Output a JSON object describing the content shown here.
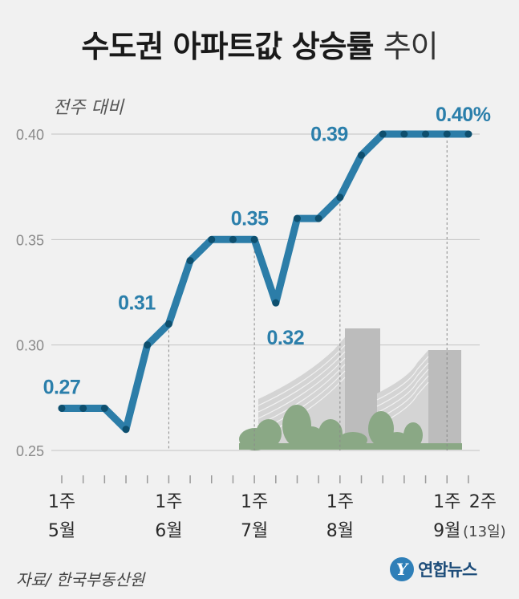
{
  "title": {
    "main": "수도권 아파트값 상승률",
    "sub": "추이"
  },
  "unit_label": "전주 대비",
  "source": "자료/ 한국부동산원",
  "logo": {
    "badge": "Y",
    "name": "연합뉴스"
  },
  "colors": {
    "line": "#2c7da8",
    "marker": "#0e4f6e",
    "label": "#2b7fab",
    "grid": "#c4c4c4",
    "axis": "#9a9a9a",
    "building": "#bcbcbc",
    "trees": "#8aa885"
  },
  "chart_data": {
    "type": "line",
    "ylim": [
      0.25,
      0.4
    ],
    "yticks": [
      "0.25",
      "0.30",
      "0.35",
      "0.40"
    ],
    "grid": true,
    "points": [
      {
        "x": "5월 1주",
        "y": 0.27
      },
      {
        "x": "5월 2주",
        "y": 0.27
      },
      {
        "x": "5월 3주",
        "y": 0.27
      },
      {
        "x": "5월 4주",
        "y": 0.26
      },
      {
        "x": "5월 5주",
        "y": 0.3
      },
      {
        "x": "6월 1주",
        "y": 0.31
      },
      {
        "x": "6월 2주",
        "y": 0.34
      },
      {
        "x": "6월 3주",
        "y": 0.35
      },
      {
        "x": "6월 4주",
        "y": 0.35
      },
      {
        "x": "7월 1주",
        "y": 0.35
      },
      {
        "x": "7월 2주",
        "y": 0.32
      },
      {
        "x": "7월 3주",
        "y": 0.36
      },
      {
        "x": "7월 4주",
        "y": 0.36
      },
      {
        "x": "8월 1주",
        "y": 0.37
      },
      {
        "x": "8월 2주",
        "y": 0.39
      },
      {
        "x": "8월 3주",
        "y": 0.4
      },
      {
        "x": "8월 4주",
        "y": 0.4
      },
      {
        "x": "8월 5주",
        "y": 0.4
      },
      {
        "x": "9월 1주",
        "y": 0.4
      },
      {
        "x": "9월 2주",
        "y": 0.4
      }
    ],
    "data_labels": [
      {
        "index": 0,
        "text": "0.27"
      },
      {
        "index": 5,
        "text": "0.31"
      },
      {
        "index": 9,
        "text": "0.35"
      },
      {
        "index": 10,
        "text": "0.32"
      },
      {
        "index": 14,
        "text": "0.39"
      },
      {
        "index": 18,
        "text": "0.40%"
      }
    ],
    "x_labels": [
      {
        "index": 0,
        "week": "1주",
        "month": "5월"
      },
      {
        "index": 5,
        "week": "1주",
        "month": "6월"
      },
      {
        "index": 9,
        "week": "1주",
        "month": "7월"
      },
      {
        "index": 13,
        "week": "1주",
        "month": "8월"
      },
      {
        "index": 18,
        "week": "1주",
        "month": "9월"
      },
      {
        "index": 19,
        "week": "2주",
        "month": "(13일)"
      }
    ]
  }
}
